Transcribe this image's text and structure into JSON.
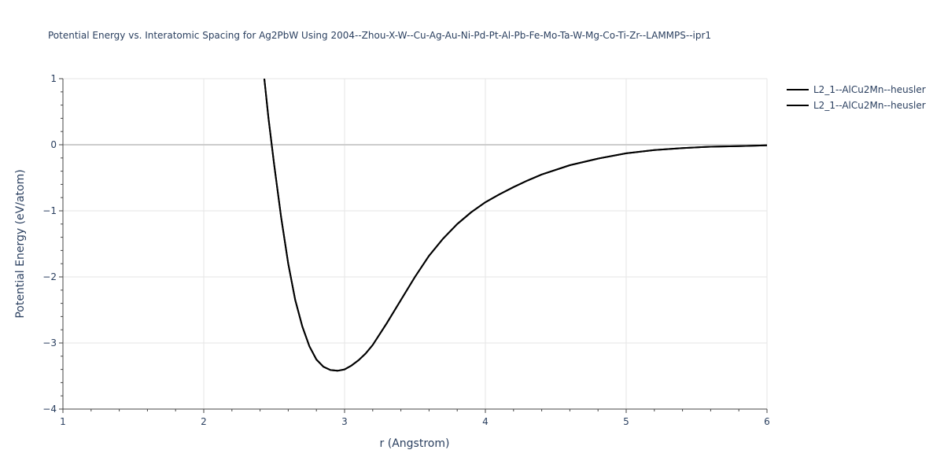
{
  "chart_data": {
    "type": "line",
    "title": "Potential Energy vs. Interatomic Spacing for Ag2PbW Using 2004--Zhou-X-W--Cu-Ag-Au-Ni-Pd-Pt-Al-Pb-Fe-Mo-Ta-W-Mg-Co-Ti-Zr--LAMMPS--ipr1",
    "xlabel": "r (Angstrom)",
    "ylabel": "Potential Energy (eV/atom)",
    "xlim": [
      1,
      6
    ],
    "ylim": [
      -4,
      1
    ],
    "x_ticks": [
      1,
      2,
      3,
      4,
      5,
      6
    ],
    "y_ticks": [
      -4,
      -3,
      -2,
      -1,
      0,
      1
    ],
    "x_tick_labels": [
      "1",
      "2",
      "3",
      "4",
      "5",
      "6"
    ],
    "y_tick_labels": [
      "−4",
      "−3",
      "−2",
      "−1",
      "0",
      "1"
    ],
    "grid": true,
    "legend_position": "top-right",
    "line_color": "#000000",
    "series": [
      {
        "name": "L2_1--AlCu2Mn--heusler",
        "x": [
          2.43,
          2.46,
          2.5,
          2.55,
          2.6,
          2.65,
          2.7,
          2.75,
          2.8,
          2.85,
          2.9,
          2.95,
          3.0,
          3.05,
          3.1,
          3.15,
          3.2,
          3.3,
          3.4,
          3.5,
          3.6,
          3.7,
          3.8,
          3.9,
          4.0,
          4.1,
          4.2,
          4.3,
          4.4,
          4.6,
          4.8,
          5.0,
          5.2,
          5.4,
          5.6,
          5.8,
          6.0
        ],
        "y": [
          1.0,
          0.4,
          -0.3,
          -1.1,
          -1.8,
          -2.35,
          -2.75,
          -3.05,
          -3.25,
          -3.36,
          -3.41,
          -3.42,
          -3.4,
          -3.34,
          -3.26,
          -3.16,
          -3.03,
          -2.7,
          -2.35,
          -2.0,
          -1.68,
          -1.42,
          -1.2,
          -1.02,
          -0.87,
          -0.75,
          -0.64,
          -0.54,
          -0.45,
          -0.31,
          -0.21,
          -0.13,
          -0.08,
          -0.05,
          -0.03,
          -0.02,
          -0.01
        ]
      },
      {
        "name": "L2_1--AlCu2Mn--heusler",
        "x": [
          2.43,
          2.46,
          2.5,
          2.55,
          2.6,
          2.65,
          2.7,
          2.75,
          2.8,
          2.85,
          2.9,
          2.95,
          3.0,
          3.05,
          3.1,
          3.15,
          3.2,
          3.3,
          3.4,
          3.5,
          3.6,
          3.7,
          3.8,
          3.9,
          4.0,
          4.1,
          4.2,
          4.3,
          4.4,
          4.6,
          4.8,
          5.0,
          5.2,
          5.4,
          5.6,
          5.8,
          6.0
        ],
        "y": [
          1.0,
          0.4,
          -0.3,
          -1.1,
          -1.8,
          -2.35,
          -2.75,
          -3.05,
          -3.25,
          -3.36,
          -3.41,
          -3.42,
          -3.4,
          -3.34,
          -3.26,
          -3.16,
          -3.03,
          -2.7,
          -2.35,
          -2.0,
          -1.68,
          -1.42,
          -1.2,
          -1.02,
          -0.87,
          -0.75,
          -0.64,
          -0.54,
          -0.45,
          -0.31,
          -0.21,
          -0.13,
          -0.08,
          -0.05,
          -0.03,
          -0.02,
          -0.01
        ]
      }
    ]
  }
}
